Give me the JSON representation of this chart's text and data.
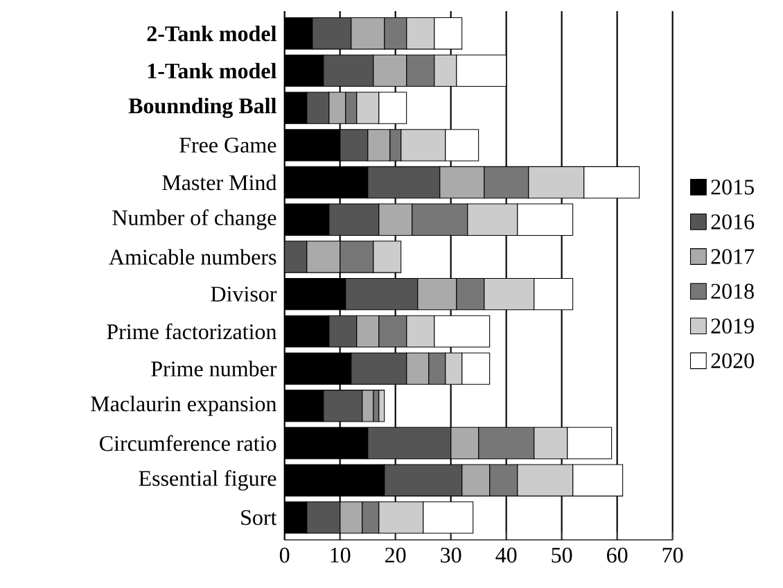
{
  "chart_data": {
    "type": "bar",
    "orientation": "horizontal",
    "stacked": true,
    "categories": [
      "**2-Tank model**",
      "**1-Tank model**",
      "**Bounnding Ball**",
      "Free Game",
      "Master Mind",
      "Number of change",
      "Amicable numbers",
      "Divisor",
      "Prime factorization",
      "Prime number",
      "Maclaurin expansion",
      "Circumference ratio",
      "Essential figure",
      "Sort"
    ],
    "series": [
      {
        "name": "2015",
        "color": "#000000",
        "values": [
          5,
          7,
          4,
          10,
          15,
          8,
          0,
          11,
          8,
          12,
          7,
          15,
          18,
          4
        ]
      },
      {
        "name": "2016",
        "color": "#555555",
        "values": [
          7,
          9,
          4,
          5,
          13,
          9,
          4,
          13,
          5,
          10,
          7,
          15,
          14,
          6
        ]
      },
      {
        "name": "2017",
        "color": "#aaaaaa",
        "values": [
          6,
          6,
          3,
          4,
          8,
          6,
          6,
          7,
          4,
          4,
          2,
          5,
          5,
          4
        ]
      },
      {
        "name": "2018",
        "color": "#777777",
        "values": [
          4,
          5,
          2,
          2,
          8,
          10,
          6,
          5,
          5,
          3,
          1,
          10,
          5,
          3
        ]
      },
      {
        "name": "2019",
        "color": "#cccccc",
        "values": [
          5,
          4,
          4,
          8,
          10,
          9,
          5,
          9,
          5,
          3,
          1,
          6,
          10,
          8
        ]
      },
      {
        "name": "2020",
        "color": "#ffffff",
        "values": [
          5,
          9,
          5,
          6,
          10,
          10,
          null,
          7,
          10,
          5,
          null,
          8,
          9,
          9
        ]
      }
    ],
    "xlim": [
      0,
      70
    ],
    "xticks": [
      0,
      10,
      20,
      30,
      40,
      50,
      60,
      70
    ],
    "grid": "x",
    "legend": "right"
  }
}
